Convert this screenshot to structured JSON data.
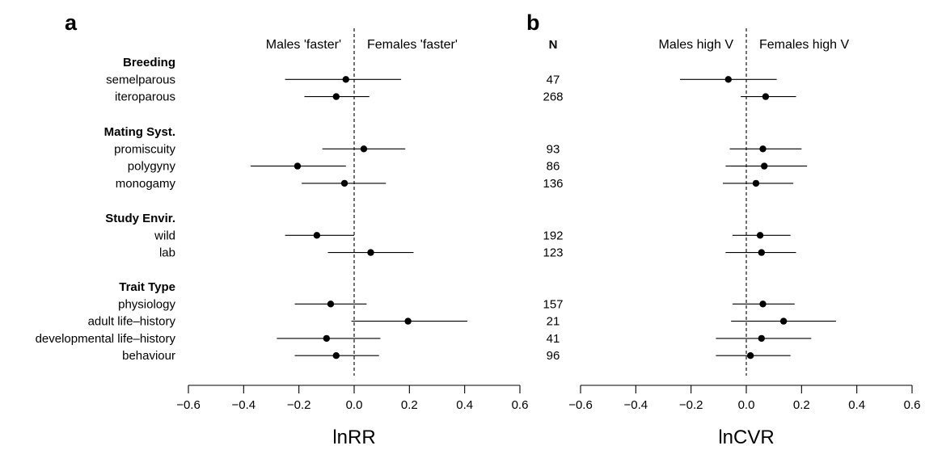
{
  "chart_data": [
    {
      "type": "forest",
      "panel": "a",
      "xlabel": "lnRR",
      "xlim": [
        -0.6,
        0.6
      ],
      "xticks": [
        "−0.6",
        "−0.4",
        "−0.2",
        "0.0",
        "0.2",
        "0.4",
        "0.6"
      ],
      "ref_line": 0,
      "side_labels": {
        "left": "Males 'faster'",
        "right": "Females 'faster'"
      },
      "groups": [
        {
          "name": "Breeding",
          "rows": [
            {
              "label": "semelparous",
              "est": -0.03,
              "lo": -0.25,
              "hi": 0.17
            },
            {
              "label": "iteroparous",
              "est": -0.065,
              "lo": -0.18,
              "hi": 0.055
            }
          ]
        },
        {
          "name": "Mating Syst.",
          "rows": [
            {
              "label": "promiscuity",
              "est": 0.035,
              "lo": -0.115,
              "hi": 0.185
            },
            {
              "label": "polygyny",
              "est": -0.205,
              "lo": -0.375,
              "hi": -0.03
            },
            {
              "label": "monogamy",
              "est": -0.035,
              "lo": -0.19,
              "hi": 0.115
            }
          ]
        },
        {
          "name": "Study Envir.",
          "rows": [
            {
              "label": "wild",
              "est": -0.135,
              "lo": -0.25,
              "hi": 0.0
            },
            {
              "label": "lab",
              "est": 0.06,
              "lo": -0.095,
              "hi": 0.215
            }
          ]
        },
        {
          "name": "Trait Type",
          "rows": [
            {
              "label": "physiology",
              "est": -0.085,
              "lo": -0.215,
              "hi": 0.045
            },
            {
              "label": "adult life–history",
              "est": 0.195,
              "lo": -0.01,
              "hi": 0.41
            },
            {
              "label": "developmental life–history",
              "est": -0.1,
              "lo": -0.28,
              "hi": 0.095
            },
            {
              "label": "behaviour",
              "est": -0.065,
              "lo": -0.215,
              "hi": 0.09
            }
          ]
        }
      ]
    },
    {
      "type": "forest",
      "panel": "b",
      "xlabel": "lnCVR",
      "xlim": [
        -0.6,
        0.6
      ],
      "xticks": [
        "−0.6",
        "−0.4",
        "−0.2",
        "0.0",
        "0.2",
        "0.4",
        "0.6"
      ],
      "ref_line": 0,
      "side_labels": {
        "left": "Males high V",
        "right": "Females high V"
      },
      "n_header": "N",
      "groups": [
        {
          "name": "Breeding",
          "rows": [
            {
              "n": "47",
              "est": -0.065,
              "lo": -0.24,
              "hi": 0.11
            },
            {
              "n": "268",
              "est": 0.07,
              "lo": -0.02,
              "hi": 0.18
            }
          ]
        },
        {
          "name": "Mating Syst.",
          "rows": [
            {
              "n": "93",
              "est": 0.06,
              "lo": -0.06,
              "hi": 0.2
            },
            {
              "n": "86",
              "est": 0.065,
              "lo": -0.075,
              "hi": 0.22
            },
            {
              "n": "136",
              "est": 0.035,
              "lo": -0.085,
              "hi": 0.17
            }
          ]
        },
        {
          "name": "Study Envir.",
          "rows": [
            {
              "n": "192",
              "est": 0.05,
              "lo": -0.05,
              "hi": 0.16
            },
            {
              "n": "123",
              "est": 0.055,
              "lo": -0.075,
              "hi": 0.18
            }
          ]
        },
        {
          "name": "Trait Type",
          "rows": [
            {
              "n": "157",
              "est": 0.06,
              "lo": -0.05,
              "hi": 0.175
            },
            {
              "n": "21",
              "est": 0.135,
              "lo": -0.055,
              "hi": 0.325
            },
            {
              "n": "41",
              "est": 0.055,
              "lo": -0.11,
              "hi": 0.235
            },
            {
              "n": "96",
              "est": 0.015,
              "lo": -0.11,
              "hi": 0.16
            }
          ]
        }
      ]
    }
  ]
}
